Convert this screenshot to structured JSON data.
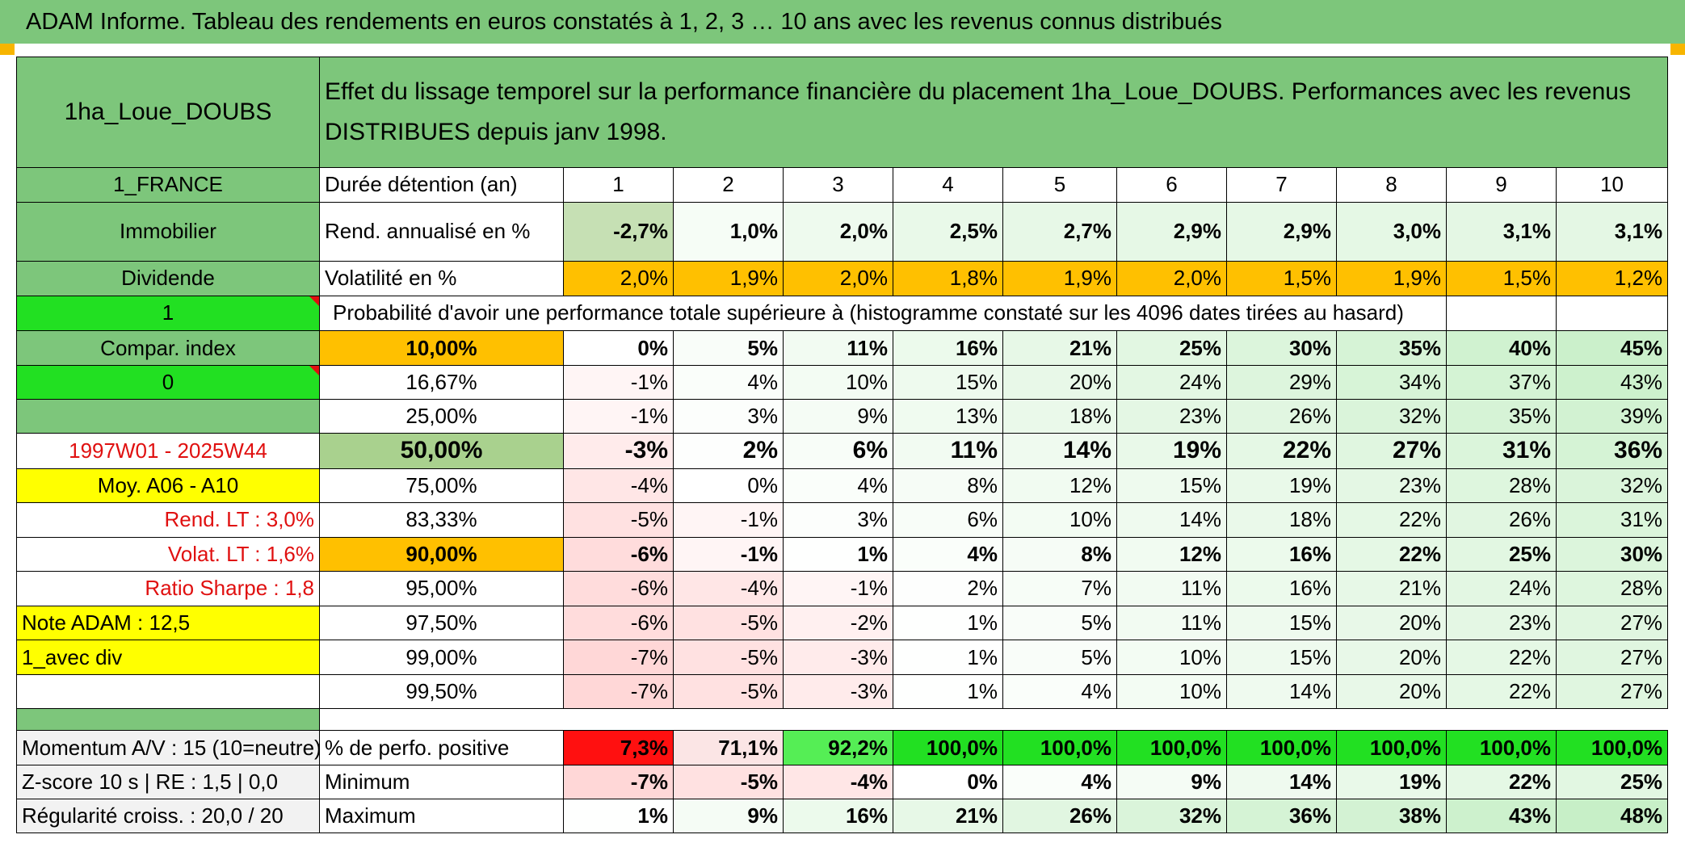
{
  "title": "ADAM Informe. Tableau des rendements en euros constatés à 1, 2, 3 … 10 ans avec les revenus connus distribués",
  "fund_name": "1ha_Loue_DOUBS",
  "description": "Effet du lissage temporel sur la performance financière du placement 1ha_Loue_DOUBS. Performances avec les revenus DISTRIBUES depuis janv 1998.",
  "left": {
    "country": "1_FRANCE",
    "category": "Immobilier",
    "dividend": "Dividende",
    "flag1": "1",
    "compar_index": "Compar. index",
    "flag0": "0",
    "period": "1997W01 - 2025W44",
    "moy": "Moy. A06 - A10",
    "rend_lt": "Rend. LT :   3,0%",
    "volat_lt": "Volat. LT :   1,6%",
    "sharpe": "Ratio Sharpe :    1,8",
    "note": "Note ADAM : 12,5",
    "avec_div": "1_avec div",
    "momentum": "Momentum A/V : 15 (10=neutre)",
    "zscore": "Z-score 10 s | RE : 1,5 | 0,0",
    "regularite": "Régularité croiss. : 20,0 / 20"
  },
  "header": {
    "label": "Durée détention (an)",
    "years": [
      "1",
      "2",
      "3",
      "4",
      "5",
      "6",
      "7",
      "8",
      "9",
      "10"
    ]
  },
  "rend": {
    "label": "Rend. annualisé en %",
    "values": [
      "-2,7%",
      "1,0%",
      "2,0%",
      "2,5%",
      "2,7%",
      "2,9%",
      "2,9%",
      "3,0%",
      "3,1%",
      "3,1%"
    ]
  },
  "volat": {
    "label": "Volatilité en %",
    "values": [
      "2,0%",
      "1,9%",
      "2,0%",
      "1,8%",
      "1,9%",
      "2,0%",
      "1,5%",
      "1,9%",
      "1,5%",
      "1,2%"
    ]
  },
  "prob_label": "Probabilité d'avoir une performance totale supérieure à (histogramme constaté sur les 4096 dates tirées au hasard)",
  "quantiles": [
    {
      "label": "10,00%",
      "values": [
        "0%",
        "5%",
        "11%",
        "16%",
        "21%",
        "25%",
        "30%",
        "35%",
        "40%",
        "45%"
      ]
    },
    {
      "label": "16,67%",
      "values": [
        "-1%",
        "4%",
        "10%",
        "15%",
        "20%",
        "24%",
        "29%",
        "34%",
        "37%",
        "43%"
      ]
    },
    {
      "label": "25,00%",
      "values": [
        "-1%",
        "3%",
        "9%",
        "13%",
        "18%",
        "23%",
        "26%",
        "32%",
        "35%",
        "39%"
      ]
    },
    {
      "label": "50,00%",
      "values": [
        "-3%",
        "2%",
        "6%",
        "11%",
        "14%",
        "19%",
        "22%",
        "27%",
        "31%",
        "36%"
      ]
    },
    {
      "label": "75,00%",
      "values": [
        "-4%",
        "0%",
        "4%",
        "8%",
        "12%",
        "15%",
        "19%",
        "23%",
        "28%",
        "32%"
      ]
    },
    {
      "label": "83,33%",
      "values": [
        "-5%",
        "-1%",
        "3%",
        "6%",
        "10%",
        "14%",
        "18%",
        "22%",
        "26%",
        "31%"
      ]
    },
    {
      "label": "90,00%",
      "values": [
        "-6%",
        "-1%",
        "1%",
        "4%",
        "8%",
        "12%",
        "16%",
        "22%",
        "25%",
        "30%"
      ]
    },
    {
      "label": "95,00%",
      "values": [
        "-6%",
        "-4%",
        "-1%",
        "2%",
        "7%",
        "11%",
        "16%",
        "21%",
        "24%",
        "28%"
      ]
    },
    {
      "label": "97,50%",
      "values": [
        "-6%",
        "-5%",
        "-2%",
        "1%",
        "5%",
        "11%",
        "15%",
        "20%",
        "23%",
        "27%"
      ]
    },
    {
      "label": "99,00%",
      "values": [
        "-7%",
        "-5%",
        "-3%",
        "1%",
        "5%",
        "10%",
        "15%",
        "20%",
        "22%",
        "27%"
      ]
    },
    {
      "label": "99,50%",
      "values": [
        "-7%",
        "-5%",
        "-3%",
        "1%",
        "4%",
        "10%",
        "14%",
        "20%",
        "22%",
        "27%"
      ]
    }
  ],
  "positive": {
    "label": "% de perfo. positive",
    "values": [
      "7,3%",
      "71,1%",
      "92,2%",
      "100,0%",
      "100,0%",
      "100,0%",
      "100,0%",
      "100,0%",
      "100,0%",
      "100,0%"
    ]
  },
  "minimum": {
    "label": "Minimum",
    "values": [
      "-7%",
      "-5%",
      "-4%",
      "0%",
      "4%",
      "9%",
      "14%",
      "19%",
      "22%",
      "25%"
    ]
  },
  "maximum": {
    "label": "Maximum",
    "values": [
      "1%",
      "9%",
      "16%",
      "21%",
      "26%",
      "32%",
      "36%",
      "38%",
      "43%",
      "48%"
    ]
  },
  "colors": {
    "header_green": "#7dc67b",
    "orange": "#ffc000",
    "bright_green": "#22e022",
    "yellow": "#ffff00",
    "red_text": "#e01010"
  }
}
